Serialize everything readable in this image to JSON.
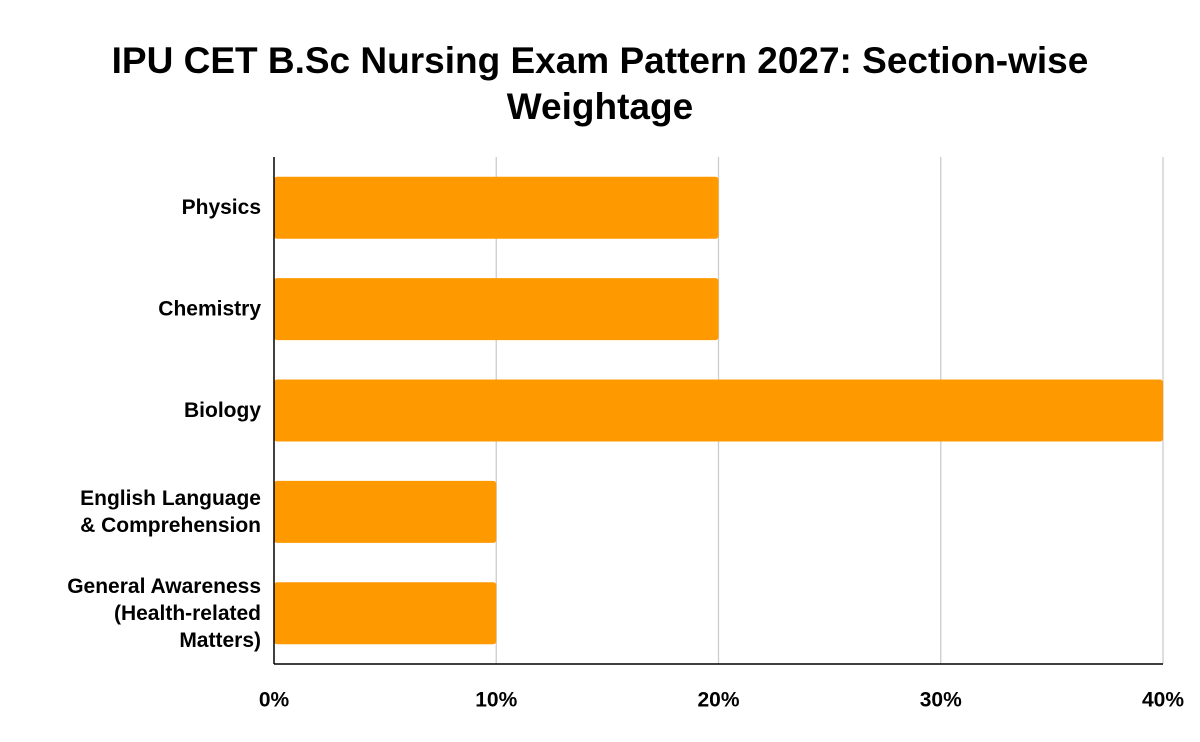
{
  "chart_data": {
    "type": "bar",
    "orientation": "horizontal",
    "title": "IPU CET B.Sc Nursing Exam Pattern 2027: Section-wise Weightage",
    "title_lines": [
      "IPU CET B.Sc Nursing Exam Pattern 2027: Section-wise",
      "Weightage"
    ],
    "categories": [
      [
        "Physics"
      ],
      [
        "Chemistry"
      ],
      [
        "Biology"
      ],
      [
        "English Language",
        "& Comprehension"
      ],
      [
        "General Awareness",
        "(Health-related",
        "Matters)"
      ]
    ],
    "values": [
      20,
      20,
      40,
      10,
      10
    ],
    "xlim": [
      0,
      40
    ],
    "xticks": [
      0,
      10,
      20,
      30,
      40
    ],
    "xtick_labels": [
      "0%",
      "10%",
      "20%",
      "30%",
      "40%"
    ],
    "xlabel": "",
    "ylabel": "",
    "grid": "vertical",
    "legend": "none",
    "bar_color": "#FF9900",
    "grid_color": "#CCCCCC",
    "axis_color": "#000000"
  }
}
